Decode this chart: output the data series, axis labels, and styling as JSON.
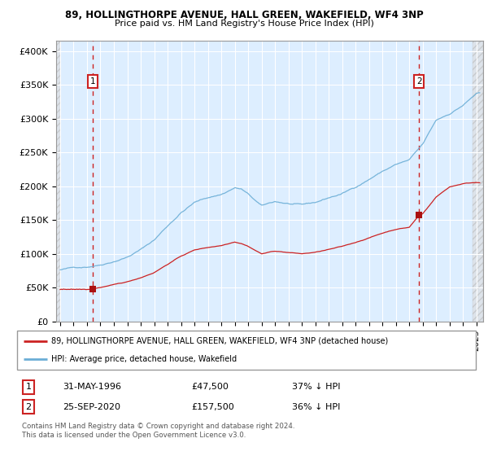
{
  "title1": "89, HOLLINGTHORPE AVENUE, HALL GREEN, WAKEFIELD, WF4 3NP",
  "title2": "Price paid vs. HM Land Registry's House Price Index (HPI)",
  "ylabel_ticks": [
    "£0",
    "£50K",
    "£100K",
    "£150K",
    "£200K",
    "£250K",
    "£300K",
    "£350K",
    "£400K"
  ],
  "ytick_values": [
    0,
    50000,
    100000,
    150000,
    200000,
    250000,
    300000,
    350000,
    400000
  ],
  "ylim": [
    0,
    415000
  ],
  "xlim_start": 1993.7,
  "xlim_end": 2025.5,
  "hpi_color": "#6baed6",
  "price_color": "#cc2222",
  "marker_color": "#aa1111",
  "dashed_color": "#cc2222",
  "annotation_box_color": "#cc2222",
  "bg_plot": "#ddeeff",
  "sale1_x": 1996.42,
  "sale1_y": 47500,
  "sale2_x": 2020.73,
  "sale2_y": 157500,
  "legend_line1": "89, HOLLINGTHORPE AVENUE, HALL GREEN, WAKEFIELD, WF4 3NP (detached house)",
  "legend_line2": "HPI: Average price, detached house, Wakefield",
  "table_row1": [
    "1",
    "31-MAY-1996",
    "£47,500",
    "37% ↓ HPI"
  ],
  "table_row2": [
    "2",
    "25-SEP-2020",
    "£157,500",
    "36% ↓ HPI"
  ],
  "footnote": "Contains HM Land Registry data © Crown copyright and database right 2024.\nThis data is licensed under the Open Government Licence v3.0."
}
